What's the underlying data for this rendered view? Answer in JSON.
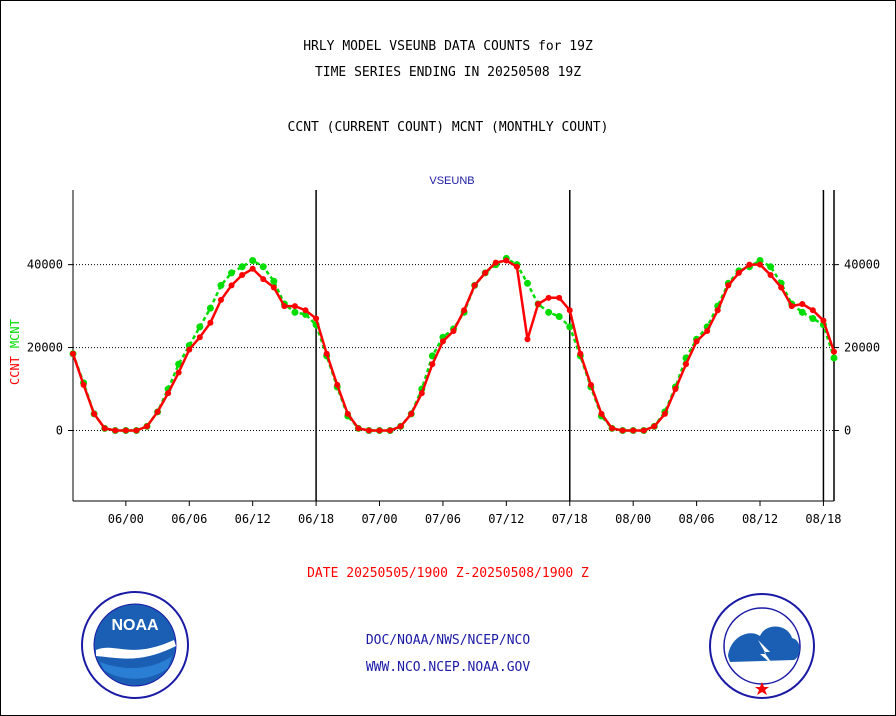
{
  "header": {
    "line1": "HRLY MODEL VSEUNB DATA COUNTS for 19Z",
    "line2": "TIME SERIES ENDING IN 20250508 19Z",
    "line3": "CCNT (CURRENT COUNT) MCNT (MONTHLY COUNT)"
  },
  "footer": {
    "date_range": "DATE 20250505/1900 Z-20250508/1900 Z",
    "org": "DOC/NOAA/NWS/NCEP/NCO",
    "url": "WWW.NCO.NCEP.NOAA.GOV"
  },
  "logos": {
    "noaa_text": "NOAA",
    "nws_ring": "NATIONAL WEATHER SERVICE"
  },
  "colors": {
    "ccnt": "#ff0000",
    "mcnt": "#00dd00",
    "title": "#1a1aa6",
    "date": "#ff0000"
  },
  "chart_data": {
    "type": "line",
    "title": "VSEUNB",
    "xlabel": "",
    "ylabel_parts": [
      "CCNT",
      "MCNT"
    ],
    "ylim": [
      -17000,
      58000
    ],
    "y_ticks": [
      0,
      20000,
      40000
    ],
    "y_tick_labels": [
      "0",
      "20000",
      "40000"
    ],
    "x_hours_range": [
      -5,
      67
    ],
    "x_ticks": [
      {
        "h": 0,
        "label": "06/00"
      },
      {
        "h": 6,
        "label": "06/06"
      },
      {
        "h": 12,
        "label": "06/12"
      },
      {
        "h": 18,
        "label": "06/18"
      },
      {
        "h": 24,
        "label": "07/00"
      },
      {
        "h": 30,
        "label": "07/06"
      },
      {
        "h": 36,
        "label": "07/12"
      },
      {
        "h": 42,
        "label": "07/18"
      },
      {
        "h": 48,
        "label": "08/00"
      },
      {
        "h": 54,
        "label": "08/06"
      },
      {
        "h": 60,
        "label": "08/12"
      },
      {
        "h": 66,
        "label": "08/18"
      }
    ],
    "day_boundaries": [
      18,
      42,
      66
    ],
    "end_marker": 67,
    "grid": "horizontal dotted",
    "series": [
      {
        "name": "CCNT",
        "x": [
          -5,
          -4,
          -3,
          -2,
          -1,
          0,
          1,
          2,
          3,
          4,
          5,
          6,
          7,
          8,
          9,
          10,
          11,
          12,
          13,
          14,
          15,
          16,
          17,
          18,
          19,
          20,
          21,
          22,
          23,
          24,
          25,
          26,
          27,
          28,
          29,
          30,
          31,
          32,
          33,
          34,
          35,
          36,
          37,
          38,
          39,
          40,
          41,
          42,
          43,
          44,
          45,
          46,
          47,
          48,
          49,
          50,
          51,
          52,
          53,
          54,
          55,
          56,
          57,
          58,
          59,
          60,
          61,
          62,
          63,
          64,
          65,
          66,
          67
        ],
        "values": [
          18500,
          11000,
          4000,
          500,
          0,
          0,
          0,
          1000,
          4500,
          9000,
          14000,
          19500,
          22500,
          26000,
          31500,
          35000,
          37500,
          39000,
          36500,
          34500,
          30000,
          30000,
          29000,
          27000,
          18500,
          11000,
          4000,
          500,
          0,
          0,
          0,
          1000,
          4000,
          9000,
          16000,
          21500,
          24000,
          29000,
          35000,
          38000,
          40500,
          41000,
          39500,
          22000,
          30500,
          32000,
          32000,
          29000,
          18500,
          11000,
          4000,
          500,
          0,
          0,
          0,
          1000,
          4000,
          10000,
          16000,
          21500,
          24000,
          29000,
          35000,
          38000,
          40000,
          40000,
          37500,
          34500,
          30000,
          30500,
          29000,
          26500,
          19000
        ]
      },
      {
        "name": "MCNT",
        "x": [
          -5,
          -4,
          -3,
          -2,
          -1,
          0,
          1,
          2,
          3,
          4,
          5,
          6,
          7,
          8,
          9,
          10,
          11,
          12,
          13,
          14,
          15,
          16,
          17,
          18,
          19,
          20,
          21,
          22,
          23,
          24,
          25,
          26,
          27,
          28,
          29,
          30,
          31,
          32,
          33,
          34,
          35,
          36,
          37,
          38,
          39,
          40,
          41,
          42,
          43,
          44,
          45,
          46,
          47,
          48,
          49,
          50,
          51,
          52,
          53,
          54,
          55,
          56,
          57,
          58,
          59,
          60,
          61,
          62,
          63,
          64,
          65,
          66,
          67
        ],
        "values": [
          18500,
          11500,
          4000,
          500,
          0,
          0,
          0,
          1000,
          4500,
          10000,
          16000,
          20500,
          25000,
          29500,
          35000,
          38000,
          39500,
          41000,
          39500,
          36000,
          30500,
          28500,
          28000,
          25500,
          18000,
          10500,
          3500,
          500,
          0,
          0,
          0,
          1000,
          4000,
          10000,
          18000,
          22500,
          24500,
          28500,
          35000,
          38000,
          40000,
          41500,
          40000,
          35500,
          30500,
          28500,
          27500,
          25000,
          18000,
          10500,
          3500,
          500,
          0,
          0,
          0,
          1000,
          4500,
          10500,
          17500,
          22000,
          25000,
          30000,
          35500,
          38500,
          39500,
          41000,
          39500,
          35500,
          30500,
          28500,
          27000,
          25500,
          17500
        ]
      }
    ]
  }
}
